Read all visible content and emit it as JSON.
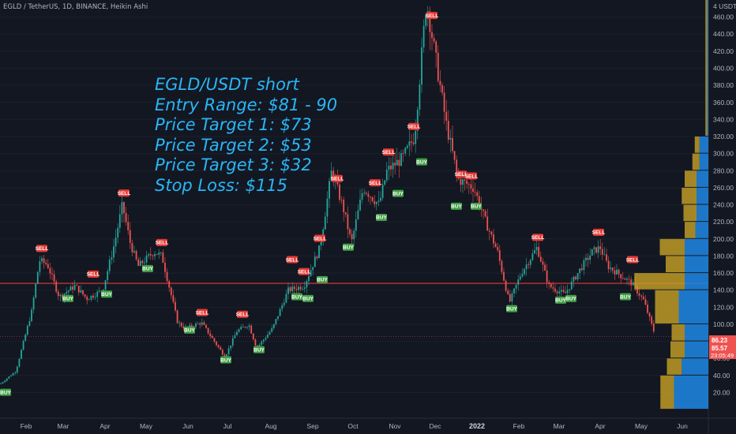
{
  "header": {
    "title": "EGLD / TetherUS, 1D, BINANCE, Heikin Ashi"
  },
  "annotation": {
    "lines": [
      "EGLD/USDT short",
      "Entry Range: $81 - 90",
      "Price Target 1: $73",
      "Price Target 2: $53",
      "Price Target 3: $32",
      "Stop Loss: $115"
    ],
    "color": "#29b6f6"
  },
  "price_tags": {
    "upper": "86.23",
    "lower": "85.57",
    "countdown": "23:05:49"
  },
  "colors": {
    "bg": "#131722",
    "up": "#26a69a",
    "down": "#ef5350",
    "horizontal_line": "#e53935",
    "vp_gold": "#c9a227",
    "vp_blue": "#1e88e5",
    "buy": "#43a047",
    "sell": "#e53935"
  },
  "chart_data": {
    "type": "candlestick",
    "title": "EGLD / TetherUS, 1D, BINANCE, Heikin Ashi",
    "y_unit": "USDT",
    "y_unit_label": "4 USDT",
    "ylim": [
      0,
      480
    ],
    "y_ticks": [
      20,
      40,
      60,
      80,
      100,
      120,
      140,
      160,
      180,
      200,
      220,
      240,
      260,
      280,
      300,
      320,
      340,
      360,
      380,
      400,
      420,
      440,
      460
    ],
    "x_ticks": [
      "Feb",
      "Mar",
      "Apr",
      "May",
      "Jun",
      "Jul",
      "Aug",
      "Sep",
      "Oct",
      "Nov",
      "Dec",
      "2022",
      "Feb",
      "Mar",
      "Apr",
      "May",
      "Jun"
    ],
    "x_ticks_bold": [
      "2022"
    ],
    "horizontal_line": 148,
    "current_prices": [
      86.23,
      85.57
    ],
    "price_path": [
      [
        0,
        30
      ],
      [
        20,
        45
      ],
      [
        40,
        115
      ],
      [
        50,
        175
      ],
      [
        60,
        170
      ],
      [
        75,
        132
      ],
      [
        95,
        145
      ],
      [
        110,
        130
      ],
      [
        130,
        140
      ],
      [
        145,
        195
      ],
      [
        155,
        240
      ],
      [
        165,
        195
      ],
      [
        175,
        168
      ],
      [
        195,
        185
      ],
      [
        205,
        180
      ],
      [
        225,
        102
      ],
      [
        235,
        95
      ],
      [
        255,
        102
      ],
      [
        275,
        75
      ],
      [
        285,
        62
      ],
      [
        300,
        92
      ],
      [
        315,
        100
      ],
      [
        325,
        72
      ],
      [
        345,
        95
      ],
      [
        365,
        140
      ],
      [
        385,
        145
      ],
      [
        405,
        190
      ],
      [
        420,
        280
      ],
      [
        435,
        235
      ],
      [
        445,
        195
      ],
      [
        460,
        260
      ],
      [
        480,
        240
      ],
      [
        490,
        280
      ],
      [
        510,
        295
      ],
      [
        525,
        320
      ],
      [
        540,
        480
      ],
      [
        545,
        450
      ],
      [
        565,
        335
      ],
      [
        580,
        270
      ],
      [
        600,
        260
      ],
      [
        615,
        220
      ],
      [
        630,
        185
      ],
      [
        645,
        125
      ],
      [
        660,
        160
      ],
      [
        680,
        190
      ],
      [
        695,
        145
      ],
      [
        715,
        135
      ],
      [
        735,
        165
      ],
      [
        750,
        185
      ],
      [
        760,
        190
      ],
      [
        770,
        168
      ],
      [
        785,
        158
      ],
      [
        800,
        148
      ],
      [
        815,
        128
      ],
      [
        830,
        86
      ]
    ],
    "signals": [
      {
        "type": "SELL",
        "x": 53,
        "price": 180
      },
      {
        "type": "BUY",
        "x": 7,
        "price": 30
      },
      {
        "type": "BUY",
        "x": 86,
        "price": 140
      },
      {
        "type": "SELL",
        "x": 118,
        "price": 150
      },
      {
        "type": "BUY",
        "x": 135,
        "price": 145
      },
      {
        "type": "SELL",
        "x": 157,
        "price": 245
      },
      {
        "type": "BUY",
        "x": 187,
        "price": 175
      },
      {
        "type": "SELL",
        "x": 205,
        "price": 187
      },
      {
        "type": "BUY",
        "x": 240,
        "price": 103
      },
      {
        "type": "SELL",
        "x": 256,
        "price": 105
      },
      {
        "type": "BUY",
        "x": 286,
        "price": 68
      },
      {
        "type": "SELL",
        "x": 307,
        "price": 103
      },
      {
        "type": "BUY",
        "x": 328,
        "price": 80
      },
      {
        "type": "SELL",
        "x": 370,
        "price": 167
      },
      {
        "type": "BUY",
        "x": 376,
        "price": 142
      },
      {
        "type": "SELL",
        "x": 385,
        "price": 153
      },
      {
        "type": "BUY",
        "x": 390,
        "price": 140
      },
      {
        "type": "SELL",
        "x": 405,
        "price": 192
      },
      {
        "type": "BUY",
        "x": 408,
        "price": 162
      },
      {
        "type": "SELL",
        "x": 427,
        "price": 262
      },
      {
        "type": "BUY",
        "x": 441,
        "price": 200
      },
      {
        "type": "SELL",
        "x": 475,
        "price": 257
      },
      {
        "type": "BUY",
        "x": 483,
        "price": 235
      },
      {
        "type": "SELL",
        "x": 492,
        "price": 293
      },
      {
        "type": "BUY",
        "x": 504,
        "price": 263
      },
      {
        "type": "SELL",
        "x": 524,
        "price": 323
      },
      {
        "type": "BUY",
        "x": 534,
        "price": 300
      },
      {
        "type": "SELL",
        "x": 547,
        "price": 453
      },
      {
        "type": "SELL",
        "x": 584,
        "price": 267
      },
      {
        "type": "BUY",
        "x": 578,
        "price": 248
      },
      {
        "type": "SELL",
        "x": 597,
        "price": 265
      },
      {
        "type": "BUY",
        "x": 603,
        "price": 248
      },
      {
        "type": "BUY",
        "x": 648,
        "price": 128
      },
      {
        "type": "SELL",
        "x": 681,
        "price": 193
      },
      {
        "type": "BUY",
        "x": 710,
        "price": 138
      },
      {
        "type": "BUY",
        "x": 723,
        "price": 140
      },
      {
        "type": "SELL",
        "x": 758,
        "price": 199
      },
      {
        "type": "SELL",
        "x": 801,
        "price": 167
      },
      {
        "type": "BUY",
        "x": 792,
        "price": 142
      }
    ],
    "volume_profile": [
      {
        "low": 0,
        "high": 40,
        "gold": 0.23,
        "blue": 0.58
      },
      {
        "low": 40,
        "high": 60,
        "gold": 0.25,
        "blue": 0.45
      },
      {
        "low": 60,
        "high": 80,
        "gold": 0.24,
        "blue": 0.4
      },
      {
        "low": 80,
        "high": 100,
        "gold": 0.22,
        "blue": 0.4
      },
      {
        "low": 100,
        "high": 140,
        "gold": 0.4,
        "blue": 0.5
      },
      {
        "low": 140,
        "high": 160,
        "gold": 0.85,
        "blue": 0.4
      },
      {
        "low": 160,
        "high": 180,
        "gold": 0.32,
        "blue": 0.4
      },
      {
        "low": 180,
        "high": 200,
        "gold": 0.42,
        "blue": 0.4
      },
      {
        "low": 200,
        "high": 220,
        "gold": 0.18,
        "blue": 0.22
      },
      {
        "low": 220,
        "high": 240,
        "gold": 0.22,
        "blue": 0.2
      },
      {
        "low": 240,
        "high": 260,
        "gold": 0.25,
        "blue": 0.2
      },
      {
        "low": 260,
        "high": 280,
        "gold": 0.2,
        "blue": 0.2
      },
      {
        "low": 280,
        "high": 300,
        "gold": 0.12,
        "blue": 0.15
      },
      {
        "low": 300,
        "high": 320,
        "gold": 0.08,
        "blue": 0.15
      },
      {
        "low": 320,
        "high": 480,
        "gold": 0.03,
        "blue": 0.02
      }
    ]
  }
}
